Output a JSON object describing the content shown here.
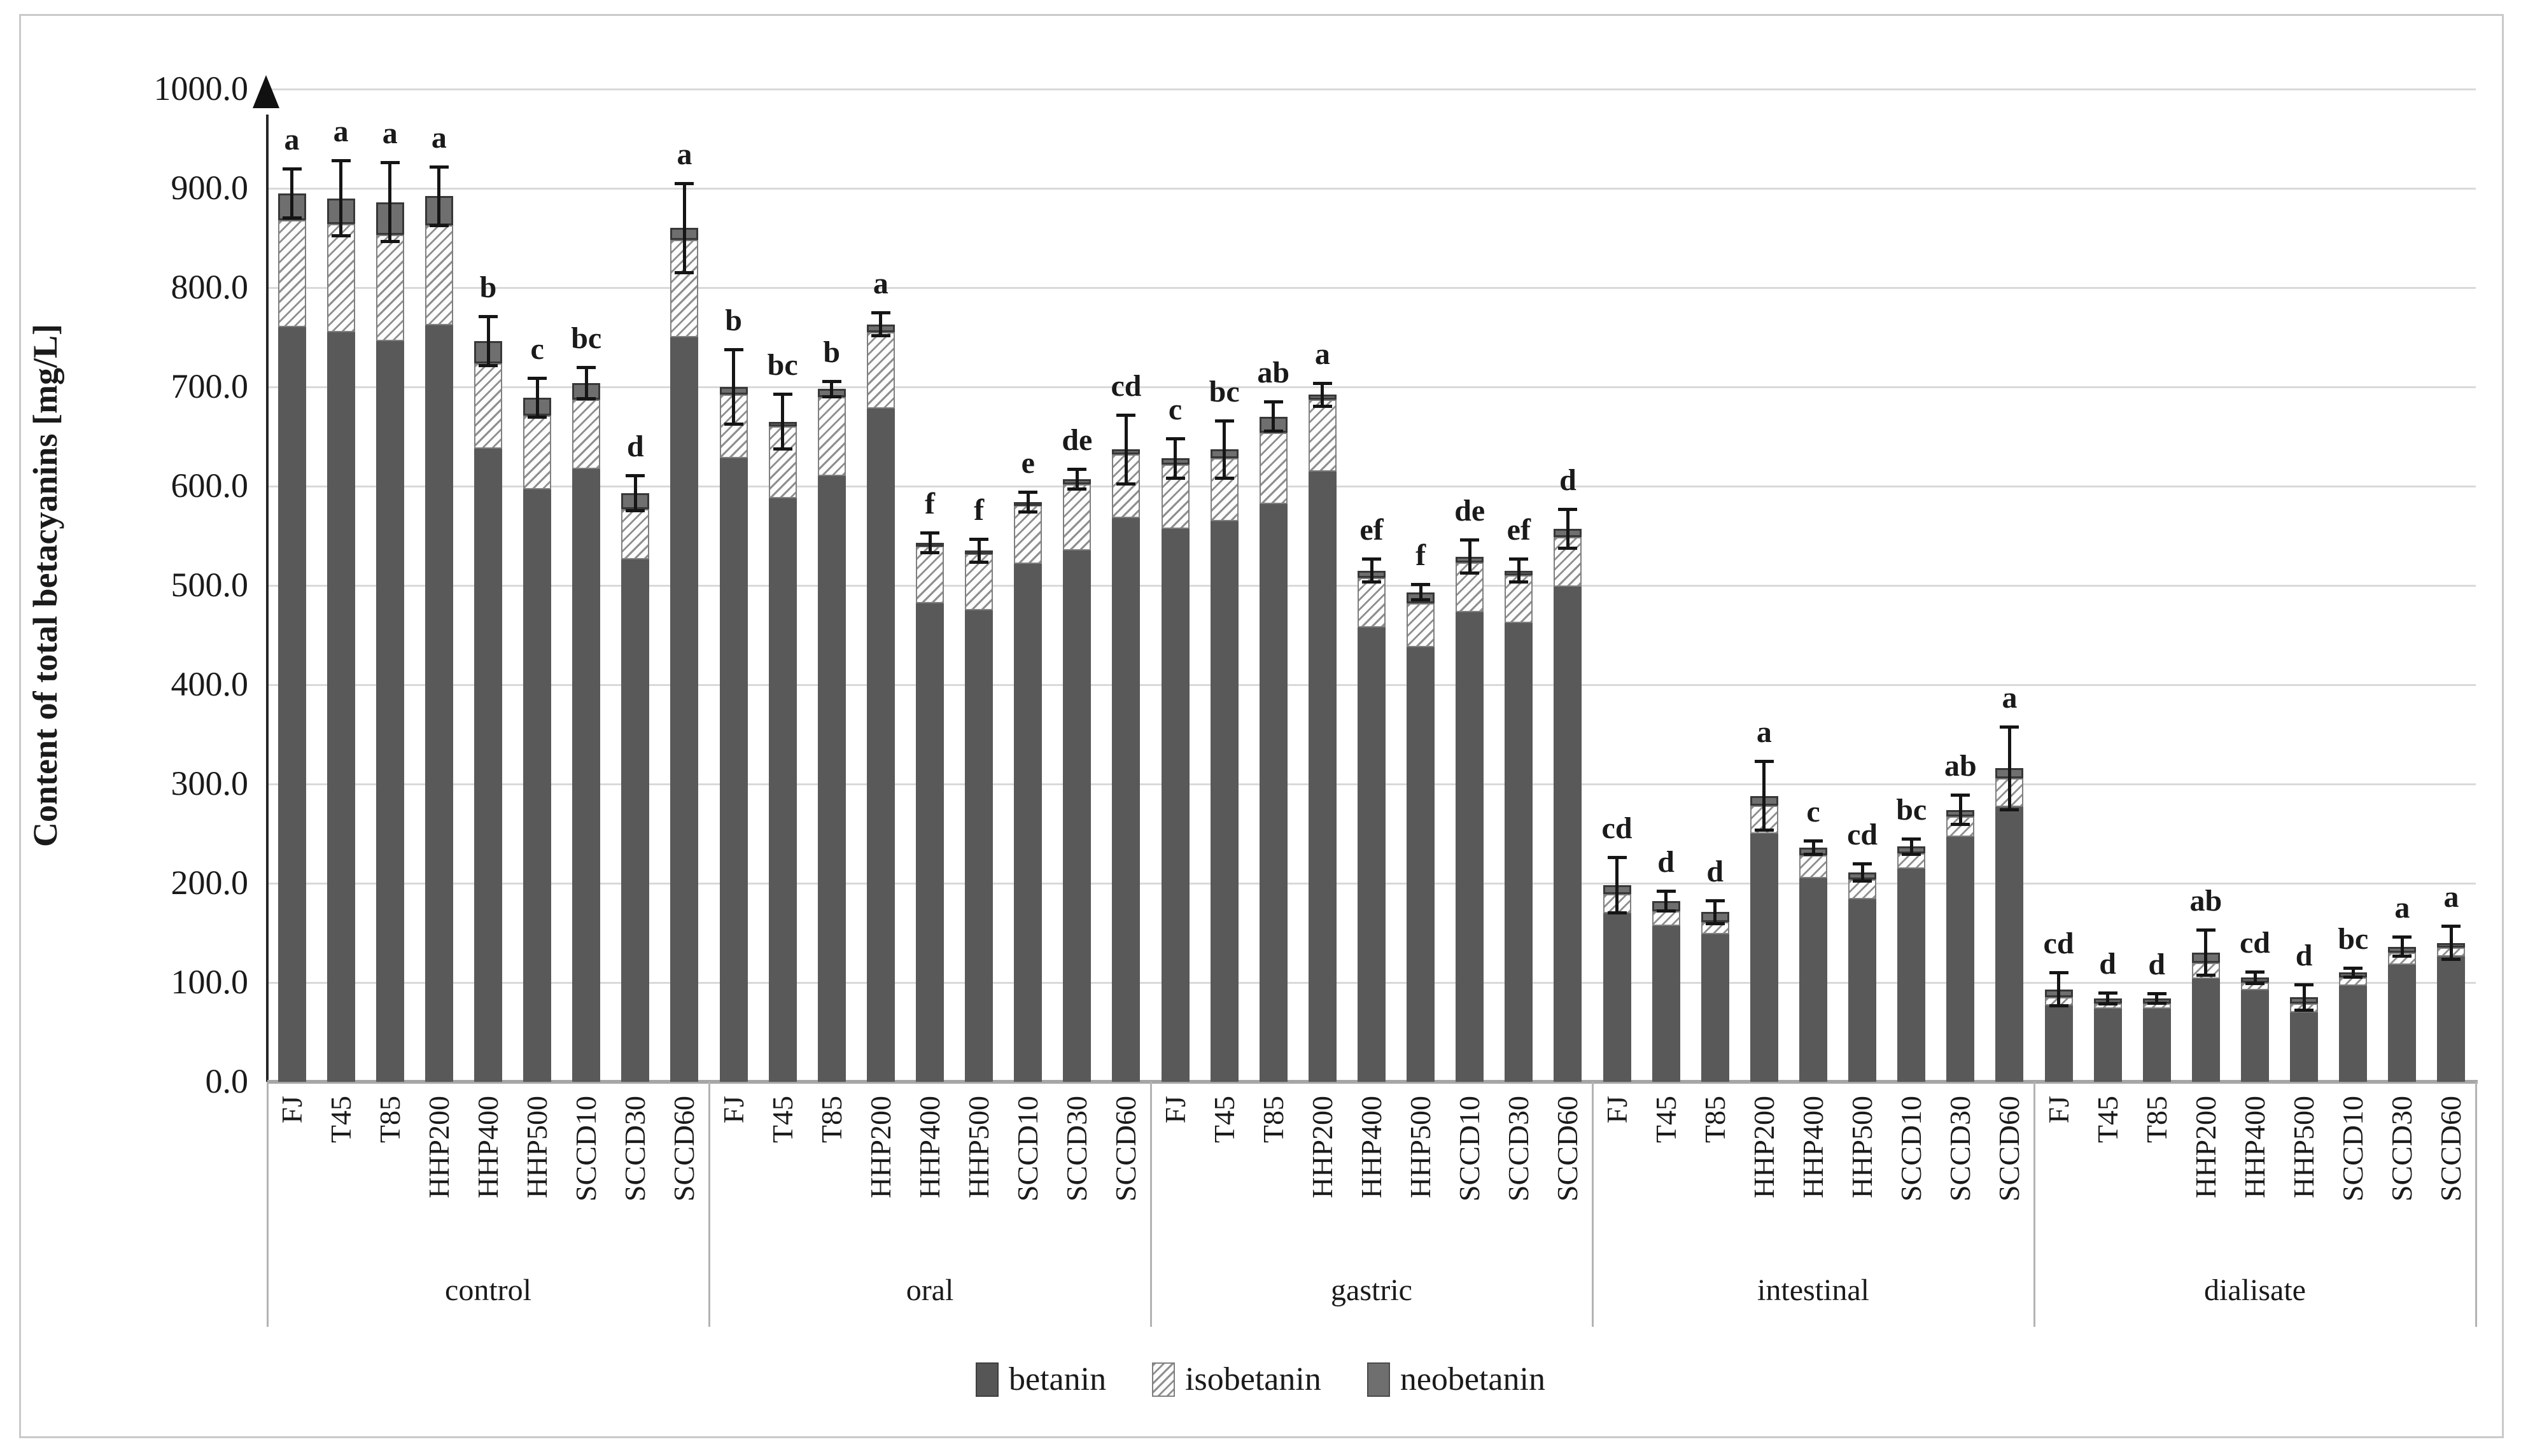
{
  "figure": {
    "background": "#ffffff",
    "border_color": "#c9c9c9"
  },
  "chart_data": {
    "type": "bar",
    "stacked": true,
    "title": "",
    "xlabel": "",
    "ylabel": "Content of total betacyanins [mg/L]",
    "ylim": [
      0,
      1000
    ],
    "ytick_step": 100,
    "y_tick_labels": [
      "0.0",
      "100.0",
      "200.0",
      "300.0",
      "400.0",
      "500.0",
      "600.0",
      "700.0",
      "800.0",
      "900.0",
      "1000.0"
    ],
    "grid": "horizontal",
    "legend_position": "bottom-center",
    "series_names": [
      "betanin",
      "isobetanin",
      "neobetanin"
    ],
    "legend": [
      {
        "label": "betanin",
        "swatch": "solid-dark-gray"
      },
      {
        "label": "isobetanin",
        "swatch": "diagonal-hatch"
      },
      {
        "label": "neobetanin",
        "swatch": "solid-medium-gray"
      }
    ],
    "colors": {
      "betanin": "#595959",
      "isobetanin_hatch": "#8f8f8f",
      "neobetanin": "#6f6f6f",
      "gridline": "#d9d9d9",
      "error_bar": "#151515",
      "axis": "#262626",
      "baseline": "#a6a6a6"
    },
    "categories": [
      "FJ",
      "T45",
      "T85",
      "HHP200",
      "HHP400",
      "HHP500",
      "SCCD10",
      "SCCD30",
      "SCCD60"
    ],
    "groups": [
      {
        "label": "control",
        "bars": [
          {
            "label": "FJ",
            "betanin": 760,
            "isobetanin": 108,
            "neobetanin": 27,
            "error": 25,
            "letter": "a"
          },
          {
            "label": "T45",
            "betanin": 755,
            "isobetanin": 109,
            "neobetanin": 26,
            "error": 38,
            "letter": "a"
          },
          {
            "label": "T85",
            "betanin": 746,
            "isobetanin": 107,
            "neobetanin": 33,
            "error": 40,
            "letter": "a"
          },
          {
            "label": "HHP200",
            "betanin": 762,
            "isobetanin": 101,
            "neobetanin": 29,
            "error": 30,
            "letter": "a"
          },
          {
            "label": "HHP400",
            "betanin": 638,
            "isobetanin": 86,
            "neobetanin": 22,
            "error": 25,
            "letter": "b"
          },
          {
            "label": "HHP500",
            "betanin": 597,
            "isobetanin": 74,
            "neobetanin": 18,
            "error": 20,
            "letter": "c"
          },
          {
            "label": "SCCD10",
            "betanin": 617,
            "isobetanin": 70,
            "neobetanin": 17,
            "error": 16,
            "letter": "bc"
          },
          {
            "label": "SCCD30",
            "betanin": 526,
            "isobetanin": 51,
            "neobetanin": 16,
            "error": 18,
            "letter": "d"
          },
          {
            "label": "SCCD60",
            "betanin": 750,
            "isobetanin": 98,
            "neobetanin": 12,
            "error": 45,
            "letter": "a"
          }
        ]
      },
      {
        "label": "oral",
        "bars": [
          {
            "label": "FJ",
            "betanin": 628,
            "isobetanin": 64,
            "neobetanin": 8,
            "error": 38,
            "letter": "b"
          },
          {
            "label": "T45",
            "betanin": 588,
            "isobetanin": 72,
            "neobetanin": 5,
            "error": 28,
            "letter": "bc"
          },
          {
            "label": "T85",
            "betanin": 610,
            "isobetanin": 80,
            "neobetanin": 8,
            "error": 8,
            "letter": "b"
          },
          {
            "label": "HHP200",
            "betanin": 678,
            "isobetanin": 77,
            "neobetanin": 8,
            "error": 12,
            "letter": "a"
          },
          {
            "label": "HHP400",
            "betanin": 482,
            "isobetanin": 58,
            "neobetanin": 3,
            "error": 10,
            "letter": "f"
          },
          {
            "label": "HHP500",
            "betanin": 475,
            "isobetanin": 57,
            "neobetanin": 3,
            "error": 12,
            "letter": "f"
          },
          {
            "label": "SCCD10",
            "betanin": 522,
            "isobetanin": 59,
            "neobetanin": 3,
            "error": 10,
            "letter": "e"
          },
          {
            "label": "SCCD30",
            "betanin": 535,
            "isobetanin": 67,
            "neobetanin": 5,
            "error": 10,
            "letter": "de"
          },
          {
            "label": "SCCD60",
            "betanin": 568,
            "isobetanin": 64,
            "neobetanin": 5,
            "error": 35,
            "letter": "cd"
          }
        ]
      },
      {
        "label": "gastric",
        "bars": [
          {
            "label": "FJ",
            "betanin": 557,
            "isobetanin": 65,
            "neobetanin": 6,
            "error": 20,
            "letter": "c"
          },
          {
            "label": "T45",
            "betanin": 565,
            "isobetanin": 63,
            "neobetanin": 9,
            "error": 29,
            "letter": "bc"
          },
          {
            "label": "T85",
            "betanin": 582,
            "isobetanin": 72,
            "neobetanin": 16,
            "error": 15,
            "letter": "ab"
          },
          {
            "label": "HHP200",
            "betanin": 615,
            "isobetanin": 72,
            "neobetanin": 5,
            "error": 12,
            "letter": "a"
          },
          {
            "label": "HHP400",
            "betanin": 458,
            "isobetanin": 50,
            "neobetanin": 7,
            "error": 12,
            "letter": "ef"
          },
          {
            "label": "HHP500",
            "betanin": 438,
            "isobetanin": 44,
            "neobetanin": 11,
            "error": 8,
            "letter": "f"
          },
          {
            "label": "SCCD10",
            "betanin": 473,
            "isobetanin": 50,
            "neobetanin": 6,
            "error": 17,
            "letter": "de"
          },
          {
            "label": "SCCD30",
            "betanin": 462,
            "isobetanin": 48,
            "neobetanin": 5,
            "error": 12,
            "letter": "ef"
          },
          {
            "label": "SCCD60",
            "betanin": 499,
            "isobetanin": 50,
            "neobetanin": 8,
            "error": 20,
            "letter": "d"
          }
        ]
      },
      {
        "label": "intestinal",
        "bars": [
          {
            "label": "FJ",
            "betanin": 170,
            "isobetanin": 19,
            "neobetanin": 9,
            "error": 28,
            "letter": "cd"
          },
          {
            "label": "T45",
            "betanin": 157,
            "isobetanin": 15,
            "neobetanin": 10,
            "error": 10,
            "letter": "d"
          },
          {
            "label": "T85",
            "betanin": 149,
            "isobetanin": 12,
            "neobetanin": 10,
            "error": 12,
            "letter": "d"
          },
          {
            "label": "HHP200",
            "betanin": 250,
            "isobetanin": 28,
            "neobetanin": 10,
            "error": 35,
            "letter": "a"
          },
          {
            "label": "HHP400",
            "betanin": 205,
            "isobetanin": 23,
            "neobetanin": 8,
            "error": 7,
            "letter": "c"
          },
          {
            "label": "HHP500",
            "betanin": 184,
            "isobetanin": 20,
            "neobetanin": 7,
            "error": 9,
            "letter": "cd"
          },
          {
            "label": "SCCD10",
            "betanin": 215,
            "isobetanin": 15,
            "neobetanin": 7,
            "error": 8,
            "letter": "bc"
          },
          {
            "label": "SCCD30",
            "betanin": 247,
            "isobetanin": 20,
            "neobetanin": 7,
            "error": 15,
            "letter": "ab"
          },
          {
            "label": "SCCD60",
            "betanin": 277,
            "isobetanin": 29,
            "neobetanin": 10,
            "error": 42,
            "letter": "a"
          }
        ]
      },
      {
        "label": "dialisate",
        "bars": [
          {
            "label": "FJ",
            "betanin": 77,
            "isobetanin": 8,
            "neobetanin": 8,
            "error": 17,
            "letter": "cd"
          },
          {
            "label": "T45",
            "betanin": 74,
            "isobetanin": 5,
            "neobetanin": 5,
            "error": 6,
            "letter": "d"
          },
          {
            "label": "T85",
            "betanin": 74,
            "isobetanin": 5,
            "neobetanin": 5,
            "error": 5,
            "letter": "d"
          },
          {
            "label": "HHP200",
            "betanin": 104,
            "isobetanin": 16,
            "neobetanin": 10,
            "error": 23,
            "letter": "ab"
          },
          {
            "label": "HHP400",
            "betanin": 92,
            "isobetanin": 8,
            "neobetanin": 5,
            "error": 6,
            "letter": "cd"
          },
          {
            "label": "HHP500",
            "betanin": 70,
            "isobetanin": 9,
            "neobetanin": 6,
            "error": 13,
            "letter": "d"
          },
          {
            "label": "SCCD10",
            "betanin": 97,
            "isobetanin": 8,
            "neobetanin": 5,
            "error": 5,
            "letter": "bc"
          },
          {
            "label": "SCCD30",
            "betanin": 118,
            "isobetanin": 12,
            "neobetanin": 6,
            "error": 10,
            "letter": "a"
          },
          {
            "label": "SCCD60",
            "betanin": 126,
            "isobetanin": 9,
            "neobetanin": 5,
            "error": 17,
            "letter": "a"
          }
        ]
      }
    ]
  }
}
